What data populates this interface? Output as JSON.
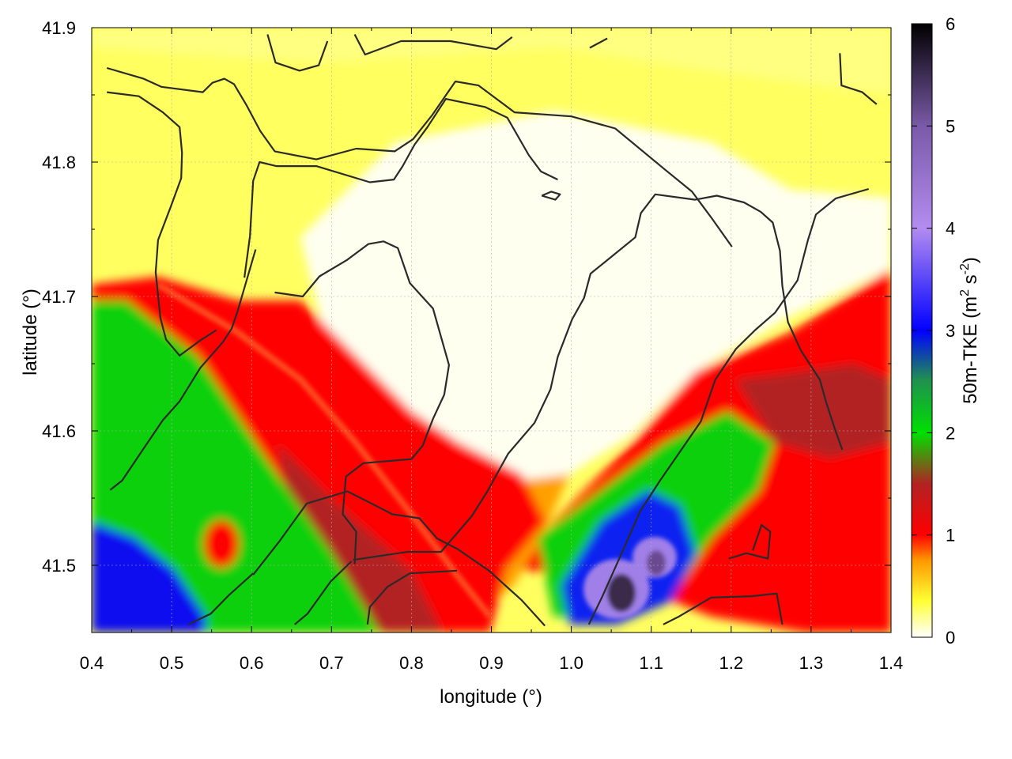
{
  "chart_data": {
    "type": "heatmap",
    "title": "",
    "xlabel": "longitude (°)",
    "ylabel": "latitude (°)",
    "xlim": [
      0.4,
      1.4
    ],
    "ylim": [
      41.45,
      41.9
    ],
    "x_ticks": [
      "0.4",
      "0.5",
      "0.6",
      "0.7",
      "0.8",
      "0.9",
      "1.0",
      "1.1",
      "1.2",
      "1.3",
      "1.4"
    ],
    "y_ticks": [
      "41.5",
      "41.6",
      "41.7",
      "41.8",
      "41.9"
    ],
    "grid": true,
    "colorbar": {
      "label": "50m-TKE (m² s⁻²)",
      "label_main": "50m-TKE (m",
      "label_sup1": "2",
      "label_mid": " s",
      "label_sup2": "-2",
      "label_end": ")",
      "range": [
        0,
        6
      ],
      "ticks": [
        "0",
        "1",
        "2",
        "3",
        "4",
        "5",
        "6"
      ],
      "colormap": [
        {
          "v": 0.0,
          "color": "#ffffff"
        },
        {
          "v": 0.35,
          "color": "#ffff33"
        },
        {
          "v": 0.75,
          "color": "#ff9900"
        },
        {
          "v": 1.0,
          "color": "#ff0000"
        },
        {
          "v": 1.5,
          "color": "#b22222"
        },
        {
          "v": 2.0,
          "color": "#00e000"
        },
        {
          "v": 2.5,
          "color": "#20a040"
        },
        {
          "v": 3.0,
          "color": "#0000ff"
        },
        {
          "v": 4.0,
          "color": "#b38cf0"
        },
        {
          "v": 5.0,
          "color": "#7a5aa8"
        },
        {
          "v": 6.0,
          "color": "#000000"
        }
      ]
    },
    "field_regions": [
      {
        "name": "NW-green-band",
        "tke": 2.0
      },
      {
        "name": "SW-blue",
        "tke": 3.0
      },
      {
        "name": "center-pale",
        "tke": 0.1
      },
      {
        "name": "north-yellow",
        "tke": 0.35
      },
      {
        "name": "SE-red",
        "tke": 1.3
      },
      {
        "name": "purple-max",
        "tke": 4.5
      }
    ],
    "contours": [
      {
        "label": "c1",
        "points": [
          [
            0.419,
            41.87
          ],
          [
            0.465,
            41.862
          ],
          [
            0.487,
            41.856
          ],
          [
            0.539,
            41.852
          ],
          [
            0.551,
            41.859
          ],
          [
            0.566,
            41.862
          ],
          [
            0.578,
            41.858
          ],
          [
            0.594,
            41.842
          ],
          [
            0.611,
            41.823
          ],
          [
            0.629,
            41.808
          ],
          [
            0.681,
            41.802
          ],
          [
            0.731,
            41.81
          ],
          [
            0.779,
            41.808
          ],
          [
            0.802,
            41.817
          ],
          [
            0.826,
            41.835
          ],
          [
            0.855,
            41.86
          ],
          [
            0.884,
            41.857
          ],
          [
            0.929,
            41.837
          ],
          [
            1.0,
            41.834
          ],
          [
            1.055,
            41.825
          ],
          [
            1.118,
            41.794
          ],
          [
            1.151,
            41.778
          ],
          [
            1.176,
            41.758
          ],
          [
            1.201,
            41.737
          ]
        ]
      },
      {
        "label": "c2",
        "points": [
          [
            0.419,
            41.852
          ],
          [
            0.459,
            41.849
          ],
          [
            0.489,
            41.837
          ],
          [
            0.51,
            41.826
          ],
          [
            0.513,
            41.807
          ],
          [
            0.512,
            41.788
          ],
          [
            0.499,
            41.767
          ],
          [
            0.483,
            41.742
          ],
          [
            0.48,
            41.718
          ],
          [
            0.486,
            41.684
          ],
          [
            0.493,
            41.668
          ],
          [
            0.51,
            41.656
          ],
          [
            0.535,
            41.667
          ],
          [
            0.556,
            41.675
          ]
        ]
      },
      {
        "label": "c3",
        "points": [
          [
            0.591,
            41.714
          ],
          [
            0.598,
            41.745
          ],
          [
            0.602,
            41.786
          ],
          [
            0.61,
            41.8
          ],
          [
            0.631,
            41.797
          ],
          [
            0.681,
            41.797
          ],
          [
            0.748,
            41.785
          ],
          [
            0.778,
            41.787
          ],
          [
            0.789,
            41.797
          ],
          [
            0.804,
            41.813
          ],
          [
            0.82,
            41.826
          ],
          [
            0.843,
            41.847
          ],
          [
            0.892,
            41.841
          ],
          [
            0.92,
            41.833
          ],
          [
            0.947,
            41.805
          ],
          [
            0.962,
            41.793
          ],
          [
            0.983,
            41.787
          ]
        ]
      },
      {
        "label": "c4",
        "points": [
          [
            0.605,
            41.735
          ],
          [
            0.582,
            41.688
          ],
          [
            0.575,
            41.676
          ],
          [
            0.564,
            41.666
          ],
          [
            0.536,
            41.647
          ],
          [
            0.51,
            41.622
          ],
          [
            0.489,
            41.608
          ],
          [
            0.464,
            41.586
          ],
          [
            0.438,
            41.563
          ],
          [
            0.423,
            41.556
          ]
        ]
      },
      {
        "label": "c5",
        "points": [
          [
            0.629,
            41.703
          ],
          [
            0.664,
            41.7
          ],
          [
            0.685,
            41.715
          ],
          [
            0.719,
            41.727
          ],
          [
            0.746,
            41.739
          ],
          [
            0.765,
            41.741
          ],
          [
            0.783,
            41.736
          ],
          [
            0.798,
            41.71
          ],
          [
            0.827,
            41.691
          ],
          [
            0.847,
            41.649
          ],
          [
            0.841,
            41.627
          ],
          [
            0.827,
            41.609
          ],
          [
            0.814,
            41.589
          ],
          [
            0.8,
            41.579
          ],
          [
            0.74,
            41.576
          ],
          [
            0.718,
            41.566
          ],
          [
            0.714,
            41.538
          ],
          [
            0.731,
            41.525
          ],
          [
            0.729,
            41.501
          ]
        ]
      },
      {
        "label": "c6",
        "points": [
          [
            0.727,
            41.504
          ],
          [
            0.795,
            41.51
          ],
          [
            0.837,
            41.51
          ],
          [
            0.876,
            41.537
          ],
          [
            0.895,
            41.555
          ],
          [
            0.921,
            41.583
          ],
          [
            0.954,
            41.606
          ],
          [
            0.974,
            41.631
          ],
          [
            0.983,
            41.655
          ],
          [
            1.001,
            41.683
          ],
          [
            1.016,
            41.699
          ],
          [
            1.024,
            41.717
          ],
          [
            1.047,
            41.728
          ],
          [
            1.08,
            41.744
          ],
          [
            1.087,
            41.762
          ],
          [
            1.105,
            41.776
          ],
          [
            1.155,
            41.772
          ],
          [
            1.182,
            41.775
          ],
          [
            1.216,
            41.77
          ],
          [
            1.237,
            41.763
          ],
          [
            1.252,
            41.755
          ],
          [
            1.261,
            41.734
          ],
          [
            1.264,
            41.708
          ],
          [
            1.271,
            41.681
          ],
          [
            1.287,
            41.66
          ],
          [
            1.311,
            41.638
          ],
          [
            1.319,
            41.621
          ],
          [
            1.33,
            41.601
          ],
          [
            1.339,
            41.586
          ]
        ]
      },
      {
        "label": "c7",
        "points": [
          [
            0.602,
            41.493
          ],
          [
            0.635,
            41.518
          ],
          [
            0.669,
            41.546
          ],
          [
            0.72,
            41.555
          ],
          [
            0.75,
            41.546
          ],
          [
            0.776,
            41.538
          ],
          [
            0.81,
            41.535
          ],
          [
            0.832,
            41.52
          ],
          [
            0.858,
            41.512
          ],
          [
            0.897,
            41.496
          ],
          [
            0.938,
            41.474
          ],
          [
            0.967,
            41.455
          ]
        ]
      },
      {
        "label": "c8",
        "points": [
          [
            0.521,
            41.456
          ],
          [
            0.549,
            41.464
          ],
          [
            0.572,
            41.478
          ],
          [
            0.602,
            41.494
          ]
        ]
      },
      {
        "label": "c9",
        "points": [
          [
            0.654,
            41.456
          ],
          [
            0.67,
            41.464
          ],
          [
            0.699,
            41.488
          ],
          [
            0.725,
            41.503
          ]
        ]
      },
      {
        "label": "c10",
        "points": [
          [
            0.745,
            41.456
          ],
          [
            0.748,
            41.469
          ],
          [
            0.77,
            41.484
          ],
          [
            0.798,
            41.494
          ],
          [
            0.857,
            41.496
          ]
        ]
      },
      {
        "label": "c11",
        "points": [
          [
            1.022,
            41.456
          ],
          [
            1.039,
            41.477
          ],
          [
            1.063,
            41.509
          ],
          [
            1.086,
            41.54
          ],
          [
            1.111,
            41.563
          ],
          [
            1.133,
            41.582
          ],
          [
            1.162,
            41.607
          ],
          [
            1.18,
            41.638
          ],
          [
            1.206,
            41.661
          ],
          [
            1.23,
            41.675
          ],
          [
            1.255,
            41.688
          ],
          [
            1.283,
            41.712
          ],
          [
            1.296,
            41.742
          ],
          [
            1.306,
            41.761
          ],
          [
            1.331,
            41.773
          ],
          [
            1.372,
            41.78
          ]
        ]
      },
      {
        "label": "c12",
        "points": [
          [
            1.115,
            41.456
          ],
          [
            1.135,
            41.462
          ],
          [
            1.175,
            41.476
          ],
          [
            1.225,
            41.477
          ],
          [
            1.257,
            41.479
          ],
          [
            1.264,
            41.456
          ]
        ]
      },
      {
        "label": "c13",
        "points": [
          [
            1.197,
            41.505
          ],
          [
            1.219,
            41.509
          ],
          [
            1.246,
            41.505
          ],
          [
            1.249,
            41.525
          ],
          [
            1.238,
            41.53
          ],
          [
            1.227,
            41.511
          ]
        ]
      },
      {
        "label": "c14",
        "points": [
          [
            0.62,
            41.895
          ],
          [
            0.63,
            41.874
          ],
          [
            0.66,
            41.868
          ],
          [
            0.684,
            41.872
          ],
          [
            0.695,
            41.89
          ]
        ]
      },
      {
        "label": "c15",
        "points": [
          [
            0.729,
            41.895
          ],
          [
            0.742,
            41.88
          ],
          [
            0.787,
            41.89
          ],
          [
            0.849,
            41.89
          ],
          [
            0.906,
            41.884
          ],
          [
            0.926,
            41.893
          ]
        ]
      },
      {
        "label": "c16",
        "points": [
          [
            1.023,
            41.885
          ],
          [
            1.045,
            41.892
          ]
        ]
      },
      {
        "label": "c17",
        "points": [
          [
            1.336,
            41.881
          ],
          [
            1.338,
            41.857
          ],
          [
            1.364,
            41.852
          ],
          [
            1.382,
            41.843
          ]
        ]
      },
      {
        "label": "c18",
        "points": [
          [
            0.963,
            41.775
          ],
          [
            0.98,
            41.772
          ],
          [
            0.986,
            41.776
          ],
          [
            0.975,
            41.778
          ],
          [
            0.963,
            41.775
          ]
        ]
      }
    ]
  }
}
